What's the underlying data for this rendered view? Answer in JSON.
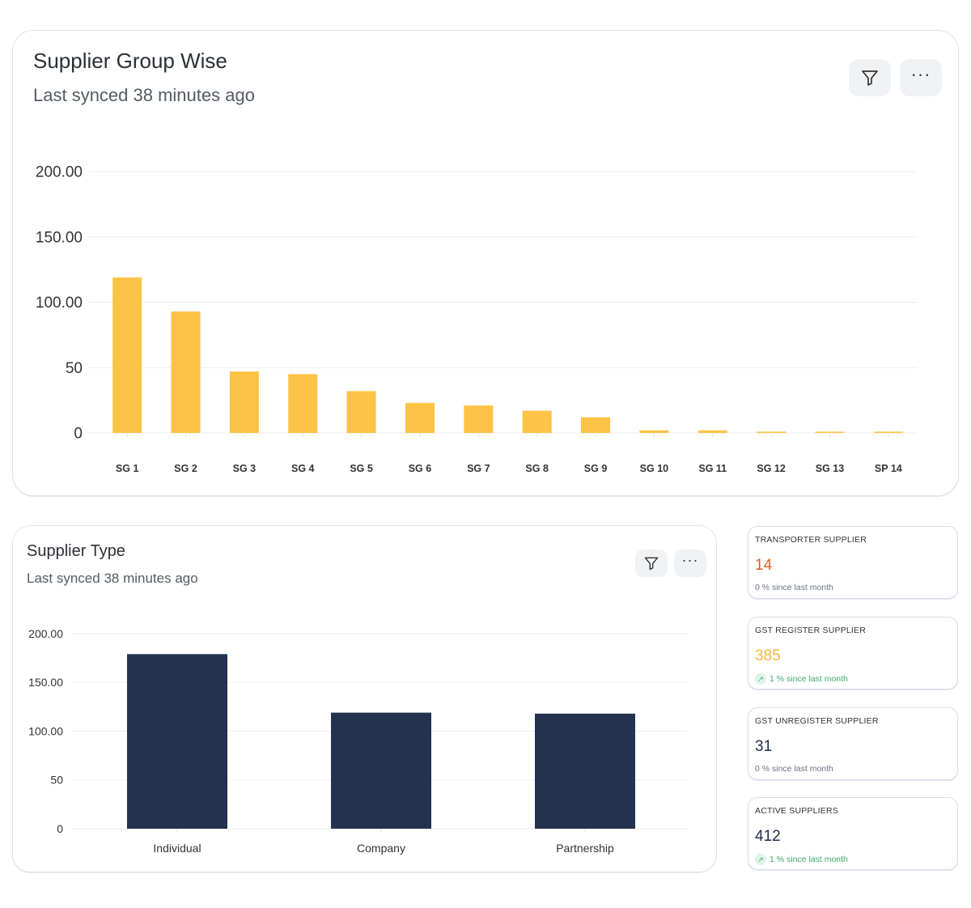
{
  "supplier_group": {
    "title": "Supplier Group Wise",
    "subtitle": "Last synced 38 minutes ago",
    "filter_icon": "filter-icon",
    "more_icon": "more-horizontal-icon",
    "more_glyph": "···"
  },
  "supplier_type": {
    "title": "Supplier Type",
    "subtitle": "Last synced 38 minutes ago",
    "filter_icon": "filter-icon",
    "more_icon": "more-horizontal-icon",
    "more_glyph": "···"
  },
  "chart_data": [
    {
      "type": "bar",
      "categories": [
        "SG 1",
        "SG 2",
        "SG 3",
        "SG 4",
        "SG 5",
        "SG 6",
        "SG 7",
        "SG 8",
        "SG 9",
        "SG 10",
        "SG 11",
        "SG 12",
        "SG 13",
        "SP 14"
      ],
      "values": [
        119,
        93,
        47,
        45,
        32,
        23,
        21,
        17,
        12,
        2,
        2,
        1,
        1,
        1
      ],
      "ylim": [
        0,
        200
      ],
      "yticks": [
        0,
        50,
        100,
        150,
        200
      ],
      "ytick_labels": [
        "0",
        "50",
        "100.00",
        "150.00",
        "200.00"
      ],
      "color": "#fcc346",
      "grid": true
    },
    {
      "type": "bar",
      "categories": [
        "Individual",
        "Company",
        "Partnership"
      ],
      "values": [
        179,
        119,
        118
      ],
      "ylim": [
        0,
        200
      ],
      "yticks": [
        0,
        50,
        100,
        150,
        200
      ],
      "ytick_labels": [
        "0",
        "50",
        "100.00",
        "150.00",
        "200.00"
      ],
      "color": "#22324f",
      "grid": true
    }
  ],
  "stats": [
    {
      "label": "TRANSPORTER SUPPLIER",
      "value": "14",
      "value_color": "#e0602a",
      "change": "0 % since last month",
      "trend": "flat"
    },
    {
      "label": "GST REGISTER SUPPLIER",
      "value": "385",
      "value_color": "#f5b83d",
      "change": "1 % since last month",
      "trend": "up"
    },
    {
      "label": "GST UNREGISTER SUPPLIER",
      "value": "31",
      "value_color": "#1f2d4a",
      "change": "0 % since last month",
      "trend": "flat"
    },
    {
      "label": "ACTIVE SUPPLIERS",
      "value": "412",
      "value_color": "#1f2d4a",
      "change": "1 % since last month",
      "trend": "up"
    }
  ]
}
